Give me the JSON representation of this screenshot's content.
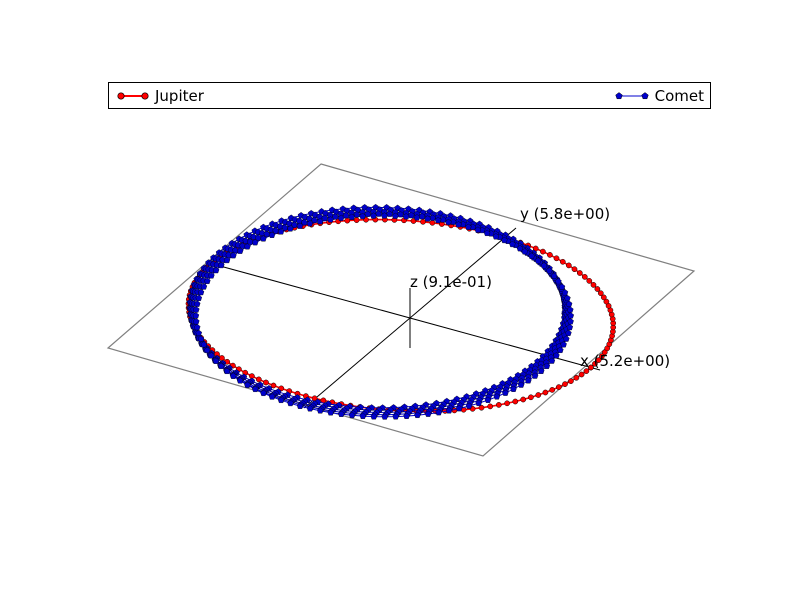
{
  "chart_data": {
    "type": "line",
    "subtype": "3d-orbit",
    "title": "",
    "axes": {
      "x": {
        "label": "x (5.2e+00)",
        "extent": 5.2
      },
      "y": {
        "label": "y (5.8e+00)",
        "extent": 5.8
      },
      "z": {
        "label": "z (9.1e-01)",
        "extent": 0.91
      }
    },
    "legend": {
      "placement": "top",
      "entries": [
        "Jupiter",
        "Comet"
      ]
    },
    "series": [
      {
        "name": "Jupiter",
        "color": "#ff0000",
        "marker": "circle",
        "orbit": {
          "semi_major_axis": 5.2,
          "eccentricity": 0.048,
          "center_x": -0.25,
          "center_y": 0.0,
          "inclination_deg": 0,
          "orbits": 1,
          "points": 140
        }
      },
      {
        "name": "Comet",
        "color": "#0000cc",
        "marker": "pentagon",
        "orbit": {
          "semi_major_axis": 4.6,
          "eccentricity": 0.15,
          "inclination_deg": 8,
          "orbits": 5,
          "points_per_orbit": 110,
          "precession_deg_per_orbit": 9
        }
      }
    ]
  }
}
